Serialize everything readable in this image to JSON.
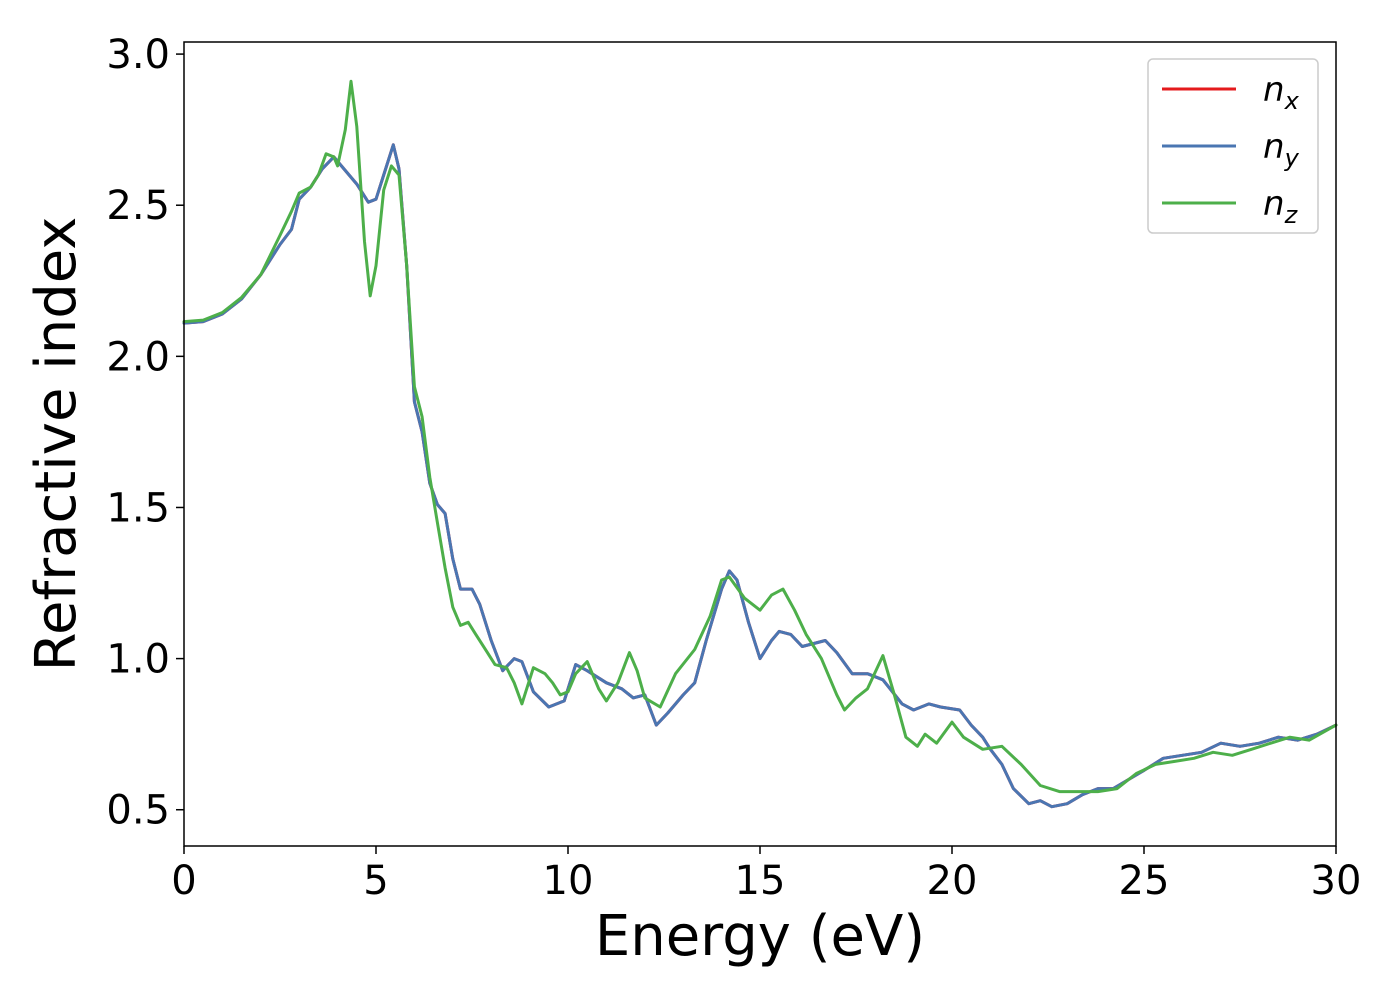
{
  "chart_data": {
    "type": "line",
    "xlabel": "Energy (eV)",
    "ylabel": "Refractive index",
    "xlim": [
      0,
      30
    ],
    "ylim": [
      0.38,
      3.04
    ],
    "xticks": [
      0,
      5,
      10,
      15,
      20,
      25,
      30
    ],
    "xtick_labels": [
      "0",
      "5",
      "10",
      "15",
      "20",
      "25",
      "30"
    ],
    "yticks": [
      0.5,
      1.0,
      1.5,
      2.0,
      2.5,
      3.0
    ],
    "ytick_labels": [
      "0.5",
      "1.0",
      "1.5",
      "2.0",
      "2.5",
      "3.0"
    ],
    "grid": false,
    "legend": {
      "position": "top-right"
    },
    "series": [
      {
        "name": "n",
        "subscript": "x",
        "color": "#e41a1c",
        "points": [
          [
            0,
            2.11
          ],
          [
            0.5,
            2.115
          ],
          [
            1,
            2.14
          ],
          [
            1.5,
            2.19
          ],
          [
            2,
            2.27
          ],
          [
            2.5,
            2.37
          ],
          [
            2.8,
            2.42
          ],
          [
            3.0,
            2.52
          ],
          [
            3.3,
            2.56
          ],
          [
            3.6,
            2.62
          ],
          [
            3.9,
            2.66
          ],
          [
            4.1,
            2.63
          ],
          [
            4.5,
            2.57
          ],
          [
            4.8,
            2.51
          ],
          [
            5.0,
            2.52
          ],
          [
            5.2,
            2.6
          ],
          [
            5.45,
            2.7
          ],
          [
            5.6,
            2.62
          ],
          [
            5.8,
            2.3
          ],
          [
            6.0,
            1.85
          ],
          [
            6.2,
            1.75
          ],
          [
            6.4,
            1.58
          ],
          [
            6.6,
            1.51
          ],
          [
            6.8,
            1.48
          ],
          [
            7.0,
            1.33
          ],
          [
            7.2,
            1.23
          ],
          [
            7.5,
            1.23
          ],
          [
            7.7,
            1.18
          ],
          [
            8.0,
            1.06
          ],
          [
            8.3,
            0.96
          ],
          [
            8.6,
            1.0
          ],
          [
            8.8,
            0.99
          ],
          [
            9.1,
            0.89
          ],
          [
            9.5,
            0.84
          ],
          [
            9.9,
            0.86
          ],
          [
            10.2,
            0.98
          ],
          [
            10.5,
            0.96
          ],
          [
            11.0,
            0.92
          ],
          [
            11.4,
            0.9
          ],
          [
            11.7,
            0.87
          ],
          [
            12.0,
            0.88
          ],
          [
            12.3,
            0.78
          ],
          [
            12.6,
            0.82
          ],
          [
            13.0,
            0.88
          ],
          [
            13.3,
            0.92
          ],
          [
            13.6,
            1.06
          ],
          [
            14.0,
            1.23
          ],
          [
            14.2,
            1.29
          ],
          [
            14.4,
            1.26
          ],
          [
            14.7,
            1.12
          ],
          [
            15.0,
            1.0
          ],
          [
            15.3,
            1.06
          ],
          [
            15.5,
            1.09
          ],
          [
            15.8,
            1.08
          ],
          [
            16.1,
            1.04
          ],
          [
            16.4,
            1.05
          ],
          [
            16.7,
            1.06
          ],
          [
            17.0,
            1.02
          ],
          [
            17.4,
            0.95
          ],
          [
            17.8,
            0.95
          ],
          [
            18.2,
            0.93
          ],
          [
            18.7,
            0.85
          ],
          [
            19.0,
            0.83
          ],
          [
            19.4,
            0.85
          ],
          [
            19.7,
            0.84
          ],
          [
            20.2,
            0.83
          ],
          [
            20.5,
            0.78
          ],
          [
            20.8,
            0.74
          ],
          [
            21.0,
            0.7
          ],
          [
            21.3,
            0.65
          ],
          [
            21.6,
            0.57
          ],
          [
            22.0,
            0.52
          ],
          [
            22.3,
            0.53
          ],
          [
            22.6,
            0.51
          ],
          [
            23.0,
            0.52
          ],
          [
            23.4,
            0.55
          ],
          [
            23.8,
            0.57
          ],
          [
            24.2,
            0.57
          ],
          [
            24.6,
            0.6
          ],
          [
            25.0,
            0.63
          ],
          [
            25.5,
            0.67
          ],
          [
            26.0,
            0.68
          ],
          [
            26.5,
            0.69
          ],
          [
            27.0,
            0.72
          ],
          [
            27.5,
            0.71
          ],
          [
            28.0,
            0.72
          ],
          [
            28.5,
            0.74
          ],
          [
            29.0,
            0.73
          ],
          [
            29.5,
            0.75
          ],
          [
            30,
            0.78
          ]
        ]
      },
      {
        "name": "n",
        "subscript": "y",
        "color": "#4a76b2",
        "points": [
          [
            0,
            2.11
          ],
          [
            0.5,
            2.115
          ],
          [
            1,
            2.14
          ],
          [
            1.5,
            2.19
          ],
          [
            2,
            2.27
          ],
          [
            2.5,
            2.37
          ],
          [
            2.8,
            2.42
          ],
          [
            3.0,
            2.52
          ],
          [
            3.3,
            2.56
          ],
          [
            3.6,
            2.62
          ],
          [
            3.9,
            2.66
          ],
          [
            4.1,
            2.63
          ],
          [
            4.5,
            2.57
          ],
          [
            4.8,
            2.51
          ],
          [
            5.0,
            2.52
          ],
          [
            5.2,
            2.6
          ],
          [
            5.45,
            2.7
          ],
          [
            5.6,
            2.62
          ],
          [
            5.8,
            2.3
          ],
          [
            6.0,
            1.85
          ],
          [
            6.2,
            1.75
          ],
          [
            6.4,
            1.58
          ],
          [
            6.6,
            1.51
          ],
          [
            6.8,
            1.48
          ],
          [
            7.0,
            1.33
          ],
          [
            7.2,
            1.23
          ],
          [
            7.5,
            1.23
          ],
          [
            7.7,
            1.18
          ],
          [
            8.0,
            1.06
          ],
          [
            8.3,
            0.96
          ],
          [
            8.6,
            1.0
          ],
          [
            8.8,
            0.99
          ],
          [
            9.1,
            0.89
          ],
          [
            9.5,
            0.84
          ],
          [
            9.9,
            0.86
          ],
          [
            10.2,
            0.98
          ],
          [
            10.5,
            0.96
          ],
          [
            11.0,
            0.92
          ],
          [
            11.4,
            0.9
          ],
          [
            11.7,
            0.87
          ],
          [
            12.0,
            0.88
          ],
          [
            12.3,
            0.78
          ],
          [
            12.6,
            0.82
          ],
          [
            13.0,
            0.88
          ],
          [
            13.3,
            0.92
          ],
          [
            13.6,
            1.06
          ],
          [
            14.0,
            1.23
          ],
          [
            14.2,
            1.29
          ],
          [
            14.4,
            1.26
          ],
          [
            14.7,
            1.12
          ],
          [
            15.0,
            1.0
          ],
          [
            15.3,
            1.06
          ],
          [
            15.5,
            1.09
          ],
          [
            15.8,
            1.08
          ],
          [
            16.1,
            1.04
          ],
          [
            16.4,
            1.05
          ],
          [
            16.7,
            1.06
          ],
          [
            17.0,
            1.02
          ],
          [
            17.4,
            0.95
          ],
          [
            17.8,
            0.95
          ],
          [
            18.2,
            0.93
          ],
          [
            18.7,
            0.85
          ],
          [
            19.0,
            0.83
          ],
          [
            19.4,
            0.85
          ],
          [
            19.7,
            0.84
          ],
          [
            20.2,
            0.83
          ],
          [
            20.5,
            0.78
          ],
          [
            20.8,
            0.74
          ],
          [
            21.0,
            0.7
          ],
          [
            21.3,
            0.65
          ],
          [
            21.6,
            0.57
          ],
          [
            22.0,
            0.52
          ],
          [
            22.3,
            0.53
          ],
          [
            22.6,
            0.51
          ],
          [
            23.0,
            0.52
          ],
          [
            23.4,
            0.55
          ],
          [
            23.8,
            0.57
          ],
          [
            24.2,
            0.57
          ],
          [
            24.6,
            0.6
          ],
          [
            25.0,
            0.63
          ],
          [
            25.5,
            0.67
          ],
          [
            26.0,
            0.68
          ],
          [
            26.5,
            0.69
          ],
          [
            27.0,
            0.72
          ],
          [
            27.5,
            0.71
          ],
          [
            28.0,
            0.72
          ],
          [
            28.5,
            0.74
          ],
          [
            29.0,
            0.73
          ],
          [
            29.5,
            0.75
          ],
          [
            30,
            0.78
          ]
        ]
      },
      {
        "name": "n",
        "subscript": "z",
        "color": "#4daf4a",
        "points": [
          [
            0,
            2.115
          ],
          [
            0.5,
            2.12
          ],
          [
            1,
            2.145
          ],
          [
            1.5,
            2.195
          ],
          [
            2,
            2.27
          ],
          [
            2.5,
            2.4
          ],
          [
            2.8,
            2.48
          ],
          [
            3.0,
            2.54
          ],
          [
            3.3,
            2.56
          ],
          [
            3.5,
            2.6
          ],
          [
            3.7,
            2.67
          ],
          [
            3.9,
            2.66
          ],
          [
            4.0,
            2.63
          ],
          [
            4.2,
            2.75
          ],
          [
            4.35,
            2.91
          ],
          [
            4.5,
            2.76
          ],
          [
            4.7,
            2.38
          ],
          [
            4.85,
            2.2
          ],
          [
            5.0,
            2.3
          ],
          [
            5.2,
            2.55
          ],
          [
            5.4,
            2.63
          ],
          [
            5.6,
            2.6
          ],
          [
            5.8,
            2.3
          ],
          [
            6.0,
            1.9
          ],
          [
            6.2,
            1.8
          ],
          [
            6.4,
            1.6
          ],
          [
            6.6,
            1.45
          ],
          [
            6.8,
            1.3
          ],
          [
            7.0,
            1.17
          ],
          [
            7.2,
            1.11
          ],
          [
            7.4,
            1.12
          ],
          [
            7.6,
            1.08
          ],
          [
            7.9,
            1.02
          ],
          [
            8.1,
            0.98
          ],
          [
            8.4,
            0.97
          ],
          [
            8.6,
            0.92
          ],
          [
            8.8,
            0.85
          ],
          [
            9.1,
            0.97
          ],
          [
            9.4,
            0.95
          ],
          [
            9.6,
            0.92
          ],
          [
            9.8,
            0.88
          ],
          [
            10.0,
            0.89
          ],
          [
            10.2,
            0.95
          ],
          [
            10.5,
            0.99
          ],
          [
            10.8,
            0.9
          ],
          [
            11.0,
            0.86
          ],
          [
            11.3,
            0.92
          ],
          [
            11.6,
            1.02
          ],
          [
            11.8,
            0.96
          ],
          [
            12.0,
            0.87
          ],
          [
            12.4,
            0.84
          ],
          [
            12.8,
            0.95
          ],
          [
            13.3,
            1.03
          ],
          [
            13.7,
            1.14
          ],
          [
            14.0,
            1.26
          ],
          [
            14.2,
            1.27
          ],
          [
            14.6,
            1.2
          ],
          [
            15.0,
            1.16
          ],
          [
            15.3,
            1.21
          ],
          [
            15.6,
            1.23
          ],
          [
            15.9,
            1.16
          ],
          [
            16.2,
            1.08
          ],
          [
            16.6,
            1.0
          ],
          [
            17.0,
            0.88
          ],
          [
            17.2,
            0.83
          ],
          [
            17.5,
            0.87
          ],
          [
            17.8,
            0.9
          ],
          [
            18.2,
            1.01
          ],
          [
            18.5,
            0.88
          ],
          [
            18.8,
            0.74
          ],
          [
            19.1,
            0.71
          ],
          [
            19.3,
            0.75
          ],
          [
            19.6,
            0.72
          ],
          [
            20.0,
            0.79
          ],
          [
            20.3,
            0.74
          ],
          [
            20.8,
            0.7
          ],
          [
            21.3,
            0.71
          ],
          [
            21.8,
            0.65
          ],
          [
            22.3,
            0.58
          ],
          [
            22.8,
            0.56
          ],
          [
            23.3,
            0.56
          ],
          [
            23.8,
            0.56
          ],
          [
            24.3,
            0.57
          ],
          [
            24.8,
            0.62
          ],
          [
            25.3,
            0.65
          ],
          [
            25.8,
            0.66
          ],
          [
            26.3,
            0.67
          ],
          [
            26.8,
            0.69
          ],
          [
            27.3,
            0.68
          ],
          [
            27.8,
            0.7
          ],
          [
            28.3,
            0.72
          ],
          [
            28.8,
            0.74
          ],
          [
            29.3,
            0.73
          ],
          [
            30,
            0.78
          ]
        ]
      }
    ]
  }
}
